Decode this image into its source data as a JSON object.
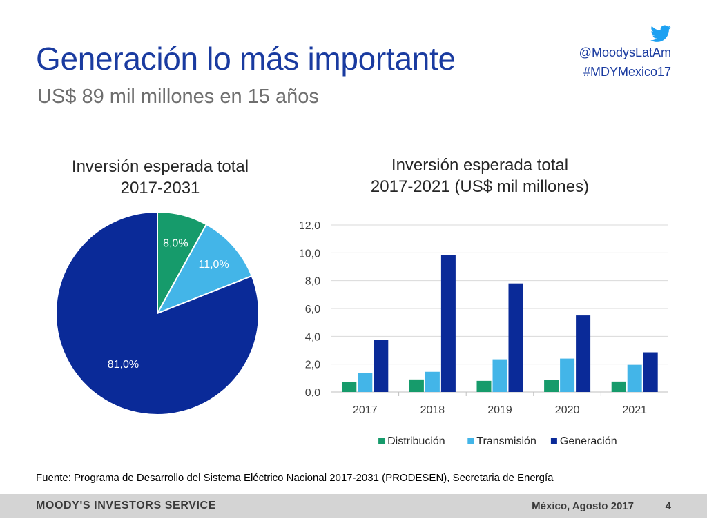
{
  "slide": {
    "title": "Generación lo más importante",
    "subtitle": "US$ 89 mil millones en 15 años",
    "handle": "@MoodysLatAm",
    "hashtag": "#MDYMexico17",
    "source": "Fuente: Programa de Desarrollo del Sistema Eléctrico Nacional 2017-2031 (PRODESEN), Secretaria de Energía"
  },
  "footer": {
    "brand": "MOODY'S INVESTORS SERVICE",
    "date": "México, Agosto 2017",
    "page": "4"
  },
  "icons": {
    "social": "twitter-bird-icon"
  },
  "colors": {
    "title": "#1a3ba0",
    "distribucion": "#169b6b",
    "transmision": "#43b5e8",
    "generacion": "#0a2a98"
  },
  "chart_data": [
    {
      "type": "pie",
      "title_line1": "Inversión esperada total",
      "title_line2": "2017-2031",
      "slices": [
        {
          "label": "8,0%",
          "value": 8.0,
          "color": "#169b6b",
          "label_color": "#ffffff"
        },
        {
          "label": "11,0%",
          "value": 11.0,
          "color": "#43b5e8",
          "label_color": "#ffffff"
        },
        {
          "label": "81,0%",
          "value": 81.0,
          "color": "#0a2a98",
          "label_color": "#ffffff"
        }
      ]
    },
    {
      "type": "bar",
      "title_line1": "Inversión esperada total",
      "title_line2": "2017-2021 (US$ mil millones)",
      "categories": [
        "2017",
        "2018",
        "2019",
        "2020",
        "2021"
      ],
      "ylim": [
        0,
        12
      ],
      "yticks": [
        "0,0",
        "2,0",
        "4,0",
        "6,0",
        "8,0",
        "10,0",
        "12,0"
      ],
      "grid": true,
      "legend_position": "bottom",
      "series": [
        {
          "name": "Distribución",
          "color": "#169b6b",
          "values": [
            0.7,
            0.9,
            0.8,
            0.85,
            0.75
          ]
        },
        {
          "name": "Transmisión",
          "color": "#43b5e8",
          "values": [
            1.35,
            1.45,
            2.35,
            2.4,
            1.95
          ]
        },
        {
          "name": "Generación",
          "color": "#0a2a98",
          "values": [
            3.75,
            9.85,
            7.8,
            5.5,
            2.85
          ]
        }
      ]
    }
  ]
}
